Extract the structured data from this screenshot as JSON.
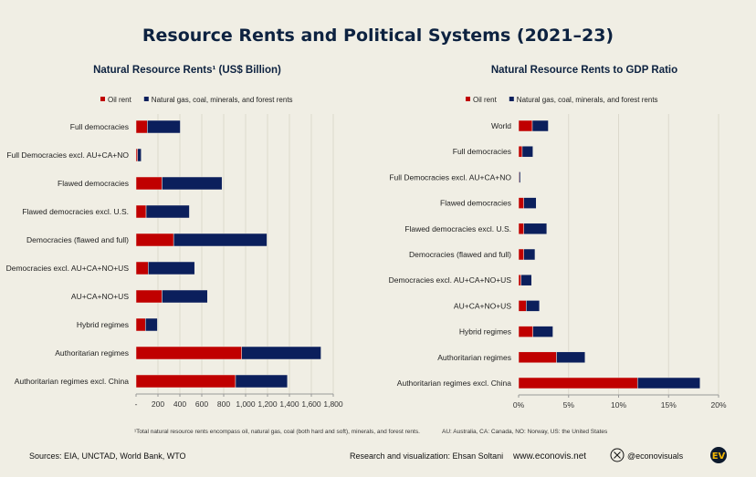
{
  "title": "Resource Rents and Political Systems (2021–23)",
  "colors": {
    "oil": "#c00000",
    "other": "#0b1f5c",
    "background": "#f0eee4"
  },
  "chart_data": [
    {
      "type": "bar",
      "orientation": "horizontal",
      "stacked": true,
      "title": "Natural Resource Rents¹ (US$ Billion)",
      "legend": [
        "Oil rent",
        "Natural gas, coal, minerals, and forest rents"
      ],
      "legend_position": "top-left",
      "categories": [
        "Full democracies",
        "Full Democracies excl. AU+CA+NO",
        "Flawed democracies",
        "Flawed democracies excl. U.S.",
        "Democracies (flawed and full)",
        "Democracies excl. AU+CA+NO+US",
        "AU+CA+NO+US",
        "Hybrid regimes",
        "Authoritarian regimes",
        "Authoritarian regimes excl. China"
      ],
      "series": [
        {
          "name": "Oil rent",
          "values": [
            103,
            14,
            237,
            92,
            343,
            111,
            237,
            86,
            964,
            908
          ]
        },
        {
          "name": "Natural gas, coal, minerals, and forest rents",
          "values": [
            301,
            33,
            548,
            395,
            852,
            424,
            415,
            109,
            724,
            474
          ]
        }
      ],
      "xlim": [
        0,
        1800
      ],
      "xticks": [
        "-",
        "200",
        "400",
        "600",
        "800",
        "1,000",
        "1,200",
        "1,400",
        "1,600",
        "1,800"
      ],
      "grid": true
    },
    {
      "type": "bar",
      "orientation": "horizontal",
      "stacked": true,
      "title": "Natural Resource Rents to GDP Ratio",
      "legend": [
        "Oil rent",
        "Natural gas, coal, minerals, and forest rents"
      ],
      "legend_position": "top-left",
      "categories": [
        "World",
        "Full democracies",
        "Full Democracies excl. AU+CA+NO",
        "Flawed democracies",
        "Flawed democracies excl. U.S.",
        "Democracies (flawed and full)",
        "Democracies excl. AU+CA+NO+US",
        "AU+CA+NO+US",
        "Hybrid regimes",
        "Authoritarian regimes",
        "Authoritarian regimes excl. China"
      ],
      "series": [
        {
          "name": "Oil rent",
          "values": [
            1.37,
            0.36,
            0.05,
            0.52,
            0.52,
            0.52,
            0.24,
            0.76,
            1.43,
            3.79,
            11.9
          ]
        },
        {
          "name": "Natural gas, coal, minerals, and forest rents",
          "values": [
            1.6,
            1.07,
            0.13,
            1.24,
            2.3,
            1.12,
            1.06,
            1.33,
            2.0,
            2.86,
            6.25
          ]
        }
      ],
      "xlim": [
        0,
        20
      ],
      "xticks": [
        "0%",
        "5%",
        "10%",
        "15%",
        "20%"
      ],
      "grid": true
    }
  ],
  "notes": {
    "left": "¹Total natural resource rents encompass oil, natural gas, coal (both hard and soft), minerals, and forest rents.",
    "right": "AU: Australia, CA: Canada, NO: Norway, US: the United States"
  },
  "footer": {
    "sources": "Sources: EIA, UNCTAD, World Bank, WTO",
    "credit": "Research and visualization: Ehsan Soltani",
    "website": "www.econovis.net",
    "handle": "@econovisuals",
    "logo": "EV",
    "social_icon": "x-logo-icon"
  }
}
